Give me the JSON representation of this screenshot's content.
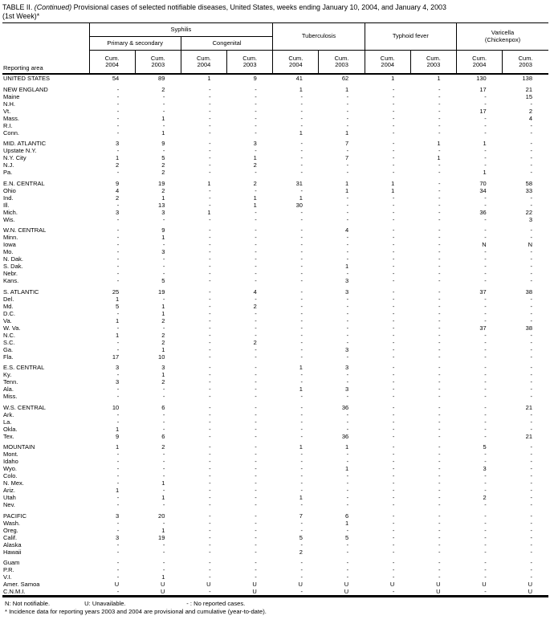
{
  "title": {
    "prefix": "TABLE II.",
    "continued": "(Continued)",
    "rest": "Provisional cases of selected notifiable diseases, United States, weeks ending January 10, 2004, and January 4, 2003",
    "line2": "(1st Week)*"
  },
  "header": {
    "reporting_area": "Reporting area",
    "syphilis": "Syphilis",
    "primary_secondary": "Primary & secondary",
    "congenital": "Congenital",
    "tuberculosis": "Tuberculosis",
    "typhoid_fever": "Typhoid fever",
    "varicella_line1": "Varicella",
    "varicella_line2": "(Chickenpox)",
    "cum": "Cum.",
    "y2004": "2004",
    "y2003": "2003"
  },
  "columns": [
    "Syphilis Primary & secondary Cum. 2004",
    "Syphilis Primary & secondary Cum. 2003",
    "Syphilis Congenital Cum. 2004",
    "Syphilis Congenital Cum. 2003",
    "Tuberculosis Cum. 2004",
    "Tuberculosis Cum. 2003",
    "Typhoid fever Cum. 2004",
    "Typhoid fever Cum. 2003",
    "Varicella (Chickenpox) Cum. 2004",
    "Varicella (Chickenpox) Cum. 2003"
  ],
  "rows": [
    {
      "area": "UNITED STATES",
      "gap": false,
      "values": [
        "54",
        "89",
        "1",
        "9",
        "41",
        "62",
        "1",
        "1",
        "130",
        "138"
      ]
    },
    {
      "area": "NEW ENGLAND",
      "gap": true,
      "values": [
        "-",
        "2",
        "-",
        "-",
        "1",
        "1",
        "-",
        "-",
        "17",
        "21"
      ]
    },
    {
      "area": "Maine",
      "gap": false,
      "values": [
        "-",
        "-",
        "-",
        "-",
        "-",
        "-",
        "-",
        "-",
        "-",
        "15"
      ]
    },
    {
      "area": "N.H.",
      "gap": false,
      "values": [
        "-",
        "-",
        "-",
        "-",
        "-",
        "-",
        "-",
        "-",
        "-",
        "-"
      ]
    },
    {
      "area": "Vt.",
      "gap": false,
      "values": [
        "-",
        "-",
        "-",
        "-",
        "-",
        "-",
        "-",
        "-",
        "17",
        "2"
      ]
    },
    {
      "area": "Mass.",
      "gap": false,
      "values": [
        "-",
        "1",
        "-",
        "-",
        "-",
        "-",
        "-",
        "-",
        "-",
        "4"
      ]
    },
    {
      "area": "R.I.",
      "gap": false,
      "values": [
        "-",
        "-",
        "-",
        "-",
        "-",
        "-",
        "-",
        "-",
        "-",
        "-"
      ]
    },
    {
      "area": "Conn.",
      "gap": false,
      "values": [
        "-",
        "1",
        "-",
        "-",
        "1",
        "1",
        "-",
        "-",
        "-",
        "-"
      ]
    },
    {
      "area": "MID. ATLANTIC",
      "gap": true,
      "values": [
        "3",
        "9",
        "-",
        "3",
        "-",
        "7",
        "-",
        "1",
        "1",
        "-"
      ]
    },
    {
      "area": "Upstate N.Y.",
      "gap": false,
      "values": [
        "-",
        "-",
        "-",
        "-",
        "-",
        "-",
        "-",
        "-",
        "-",
        "-"
      ]
    },
    {
      "area": "N.Y. City",
      "gap": false,
      "values": [
        "1",
        "5",
        "-",
        "1",
        "-",
        "7",
        "-",
        "1",
        "-",
        "-"
      ]
    },
    {
      "area": "N.J.",
      "gap": false,
      "values": [
        "2",
        "2",
        "-",
        "2",
        "-",
        "-",
        "-",
        "-",
        "-",
        "-"
      ]
    },
    {
      "area": "Pa.",
      "gap": false,
      "values": [
        "-",
        "2",
        "-",
        "-",
        "-",
        "-",
        "-",
        "-",
        "1",
        "-"
      ]
    },
    {
      "area": "E.N. CENTRAL",
      "gap": true,
      "values": [
        "9",
        "19",
        "1",
        "2",
        "31",
        "1",
        "1",
        "-",
        "70",
        "58"
      ]
    },
    {
      "area": "Ohio",
      "gap": false,
      "values": [
        "4",
        "2",
        "-",
        "-",
        "-",
        "1",
        "1",
        "-",
        "34",
        "33"
      ]
    },
    {
      "area": "Ind.",
      "gap": false,
      "values": [
        "2",
        "1",
        "-",
        "1",
        "1",
        "-",
        "-",
        "-",
        "-",
        "-"
      ]
    },
    {
      "area": "Ill.",
      "gap": false,
      "values": [
        "-",
        "13",
        "-",
        "1",
        "30",
        "-",
        "-",
        "-",
        "-",
        "-"
      ]
    },
    {
      "area": "Mich.",
      "gap": false,
      "values": [
        "3",
        "3",
        "1",
        "-",
        "-",
        "-",
        "-",
        "-",
        "36",
        "22"
      ]
    },
    {
      "area": "Wis.",
      "gap": false,
      "values": [
        "-",
        "-",
        "-",
        "-",
        "-",
        "-",
        "-",
        "-",
        "-",
        "3"
      ]
    },
    {
      "area": "W.N. CENTRAL",
      "gap": true,
      "values": [
        "-",
        "9",
        "-",
        "-",
        "-",
        "4",
        "-",
        "-",
        "-",
        "-"
      ]
    },
    {
      "area": "Minn.",
      "gap": false,
      "values": [
        "-",
        "1",
        "-",
        "-",
        "-",
        "-",
        "-",
        "-",
        "-",
        "-"
      ]
    },
    {
      "area": "Iowa",
      "gap": false,
      "values": [
        "-",
        "-",
        "-",
        "-",
        "-",
        "-",
        "-",
        "-",
        "N",
        "N"
      ]
    },
    {
      "area": "Mo.",
      "gap": false,
      "values": [
        "-",
        "3",
        "-",
        "-",
        "-",
        "-",
        "-",
        "-",
        "-",
        "-"
      ]
    },
    {
      "area": "N. Dak.",
      "gap": false,
      "values": [
        "-",
        "-",
        "-",
        "-",
        "-",
        "-",
        "-",
        "-",
        "-",
        "-"
      ]
    },
    {
      "area": "S. Dak.",
      "gap": false,
      "values": [
        "-",
        "-",
        "-",
        "-",
        "-",
        "1",
        "-",
        "-",
        "-",
        "-"
      ]
    },
    {
      "area": "Nebr.",
      "gap": false,
      "values": [
        "-",
        "-",
        "-",
        "-",
        "-",
        "-",
        "-",
        "-",
        "-",
        "-"
      ]
    },
    {
      "area": "Kans.",
      "gap": false,
      "values": [
        "-",
        "5",
        "-",
        "-",
        "-",
        "3",
        "-",
        "-",
        "-",
        "-"
      ]
    },
    {
      "area": "S. ATLANTIC",
      "gap": true,
      "values": [
        "25",
        "19",
        "-",
        "4",
        "-",
        "3",
        "-",
        "-",
        "37",
        "38"
      ]
    },
    {
      "area": "Del.",
      "gap": false,
      "values": [
        "1",
        "-",
        "-",
        "-",
        "-",
        "-",
        "-",
        "-",
        "-",
        "-"
      ]
    },
    {
      "area": "Md.",
      "gap": false,
      "values": [
        "5",
        "1",
        "-",
        "2",
        "-",
        "-",
        "-",
        "-",
        "-",
        "-"
      ]
    },
    {
      "area": "D.C.",
      "gap": false,
      "values": [
        "-",
        "1",
        "-",
        "-",
        "-",
        "-",
        "-",
        "-",
        "-",
        "-"
      ]
    },
    {
      "area": "Va.",
      "gap": false,
      "values": [
        "1",
        "2",
        "-",
        "-",
        "-",
        "-",
        "-",
        "-",
        "-",
        "-"
      ]
    },
    {
      "area": "W. Va.",
      "gap": false,
      "values": [
        "-",
        "-",
        "-",
        "-",
        "-",
        "-",
        "-",
        "-",
        "37",
        "38"
      ]
    },
    {
      "area": "N.C.",
      "gap": false,
      "values": [
        "1",
        "2",
        "-",
        "-",
        "-",
        "-",
        "-",
        "-",
        "-",
        "-"
      ]
    },
    {
      "area": "S.C.",
      "gap": false,
      "values": [
        "-",
        "2",
        "-",
        "2",
        "-",
        "-",
        "-",
        "-",
        "-",
        "-"
      ]
    },
    {
      "area": "Ga.",
      "gap": false,
      "values": [
        "-",
        "1",
        "-",
        "-",
        "-",
        "3",
        "-",
        "-",
        "-",
        "-"
      ]
    },
    {
      "area": "Fla.",
      "gap": false,
      "values": [
        "17",
        "10",
        "-",
        "-",
        "-",
        "-",
        "-",
        "-",
        "-",
        "-"
      ]
    },
    {
      "area": "E.S. CENTRAL",
      "gap": true,
      "values": [
        "3",
        "3",
        "-",
        "-",
        "1",
        "3",
        "-",
        "-",
        "-",
        "-"
      ]
    },
    {
      "area": "Ky.",
      "gap": false,
      "values": [
        "-",
        "1",
        "-",
        "-",
        "-",
        "-",
        "-",
        "-",
        "-",
        "-"
      ]
    },
    {
      "area": "Tenn.",
      "gap": false,
      "values": [
        "3",
        "2",
        "-",
        "-",
        "-",
        "-",
        "-",
        "-",
        "-",
        "-"
      ]
    },
    {
      "area": "Ala.",
      "gap": false,
      "values": [
        "-",
        "-",
        "-",
        "-",
        "1",
        "3",
        "-",
        "-",
        "-",
        "-"
      ]
    },
    {
      "area": "Miss.",
      "gap": false,
      "values": [
        "-",
        "-",
        "-",
        "-",
        "-",
        "-",
        "-",
        "-",
        "-",
        "-"
      ]
    },
    {
      "area": "W.S. CENTRAL",
      "gap": true,
      "values": [
        "10",
        "6",
        "-",
        "-",
        "-",
        "36",
        "-",
        "-",
        "-",
        "21"
      ]
    },
    {
      "area": "Ark.",
      "gap": false,
      "values": [
        "-",
        "-",
        "-",
        "-",
        "-",
        "-",
        "-",
        "-",
        "-",
        "-"
      ]
    },
    {
      "area": "La.",
      "gap": false,
      "values": [
        "-",
        "-",
        "-",
        "-",
        "-",
        "-",
        "-",
        "-",
        "-",
        "-"
      ]
    },
    {
      "area": "Okla.",
      "gap": false,
      "values": [
        "1",
        "-",
        "-",
        "-",
        "-",
        "-",
        "-",
        "-",
        "-",
        "-"
      ]
    },
    {
      "area": "Tex.",
      "gap": false,
      "values": [
        "9",
        "6",
        "-",
        "-",
        "-",
        "36",
        "-",
        "-",
        "-",
        "21"
      ]
    },
    {
      "area": "MOUNTAIN",
      "gap": true,
      "values": [
        "1",
        "2",
        "-",
        "-",
        "1",
        "1",
        "-",
        "-",
        "5",
        "-"
      ]
    },
    {
      "area": "Mont.",
      "gap": false,
      "values": [
        "-",
        "-",
        "-",
        "-",
        "-",
        "-",
        "-",
        "-",
        "-",
        "-"
      ]
    },
    {
      "area": "Idaho",
      "gap": false,
      "values": [
        "-",
        "-",
        "-",
        "-",
        "-",
        "-",
        "-",
        "-",
        "-",
        "-"
      ]
    },
    {
      "area": "Wyo.",
      "gap": false,
      "values": [
        "-",
        "-",
        "-",
        "-",
        "-",
        "1",
        "-",
        "-",
        "3",
        "-"
      ]
    },
    {
      "area": "Colo.",
      "gap": false,
      "values": [
        "-",
        "-",
        "-",
        "-",
        "-",
        "-",
        "-",
        "-",
        "-",
        "-"
      ]
    },
    {
      "area": "N. Mex.",
      "gap": false,
      "values": [
        "-",
        "1",
        "-",
        "-",
        "-",
        "-",
        "-",
        "-",
        "-",
        "-"
      ]
    },
    {
      "area": "Ariz.",
      "gap": false,
      "values": [
        "1",
        "-",
        "-",
        "-",
        "-",
        "-",
        "-",
        "-",
        "-",
        "-"
      ]
    },
    {
      "area": "Utah",
      "gap": false,
      "values": [
        "-",
        "1",
        "-",
        "-",
        "1",
        "-",
        "-",
        "-",
        "2",
        "-"
      ]
    },
    {
      "area": "Nev.",
      "gap": false,
      "values": [
        "-",
        "-",
        "-",
        "-",
        "-",
        "-",
        "-",
        "-",
        "-",
        "-"
      ]
    },
    {
      "area": "PACIFIC",
      "gap": true,
      "values": [
        "3",
        "20",
        "-",
        "-",
        "7",
        "6",
        "-",
        "-",
        "-",
        "-"
      ]
    },
    {
      "area": "Wash.",
      "gap": false,
      "values": [
        "-",
        "-",
        "-",
        "-",
        "-",
        "1",
        "-",
        "-",
        "-",
        "-"
      ]
    },
    {
      "area": "Oreg.",
      "gap": false,
      "values": [
        "-",
        "1",
        "-",
        "-",
        "-",
        "-",
        "-",
        "-",
        "-",
        "-"
      ]
    },
    {
      "area": "Calif.",
      "gap": false,
      "values": [
        "3",
        "19",
        "-",
        "-",
        "5",
        "5",
        "-",
        "-",
        "-",
        "-"
      ]
    },
    {
      "area": "Alaska",
      "gap": false,
      "values": [
        "-",
        "-",
        "-",
        "-",
        "-",
        "-",
        "-",
        "-",
        "-",
        "-"
      ]
    },
    {
      "area": "Hawaii",
      "gap": false,
      "values": [
        "-",
        "-",
        "-",
        "-",
        "2",
        "-",
        "-",
        "-",
        "-",
        "-"
      ]
    },
    {
      "area": "Guam",
      "gap": true,
      "values": [
        "-",
        "-",
        "-",
        "-",
        "-",
        "-",
        "-",
        "-",
        "-",
        "-"
      ]
    },
    {
      "area": "P.R.",
      "gap": false,
      "values": [
        "-",
        "-",
        "-",
        "-",
        "-",
        "-",
        "-",
        "-",
        "-",
        "-"
      ]
    },
    {
      "area": "V.I.",
      "gap": false,
      "values": [
        "-",
        "1",
        "-",
        "-",
        "-",
        "-",
        "-",
        "-",
        "-",
        "-"
      ]
    },
    {
      "area": "Amer. Samoa",
      "gap": false,
      "values": [
        "U",
        "U",
        "U",
        "U",
        "U",
        "U",
        "U",
        "U",
        "U",
        "U"
      ]
    },
    {
      "area": "C.N.M.I.",
      "gap": false,
      "values": [
        "-",
        "U",
        "-",
        "U",
        "-",
        "U",
        "-",
        "U",
        "-",
        "U"
      ]
    }
  ],
  "footnotes": {
    "n": "N: Not notifiable.",
    "u": "U: Unavailable.",
    "dash": "- : No reported cases.",
    "asterisk": "* Incidence data for reporting years 2003 and 2004 are provisional and cumulative (year-to-date)."
  }
}
